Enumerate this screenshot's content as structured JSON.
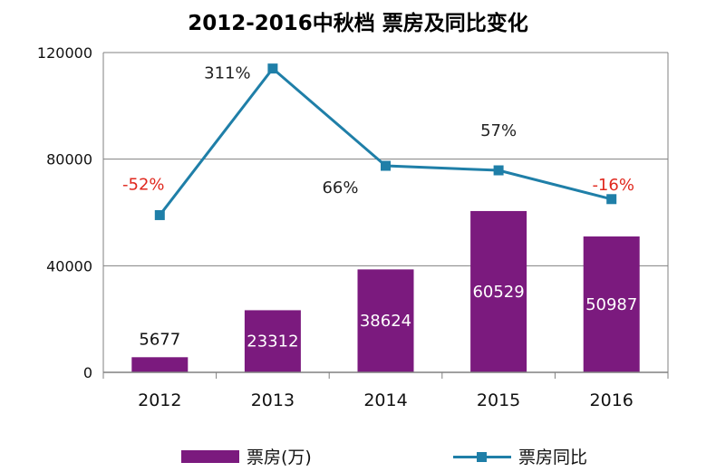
{
  "chart_data": {
    "type": "bar",
    "title": "2012-2016中秋档 票房及同比变化",
    "categories": [
      "2012",
      "2013",
      "2014",
      "2015",
      "2016"
    ],
    "ylim": [
      0,
      120000
    ],
    "yticks": [
      0,
      40000,
      80000,
      120000
    ],
    "grid": true,
    "legend_position": "bottom",
    "series": [
      {
        "name": "票房(万)",
        "type": "bar",
        "color": "#7b1a7e",
        "values": [
          5677,
          23312,
          38624,
          60529,
          50987
        ],
        "labels": [
          "5677",
          "23312",
          "38624",
          "60529",
          "50987"
        ]
      },
      {
        "name": "票房同比",
        "type": "line",
        "color": "#1f7fa8",
        "values_plotted_on_left_axis": [
          59000,
          114000,
          77500,
          75800,
          65000
        ],
        "labels": [
          "-52%",
          "311%",
          "66%",
          "57%",
          "-16%"
        ],
        "label_colors": [
          "#e0281e",
          "#222222",
          "#222222",
          "#222222",
          "#e0281e"
        ]
      }
    ]
  }
}
